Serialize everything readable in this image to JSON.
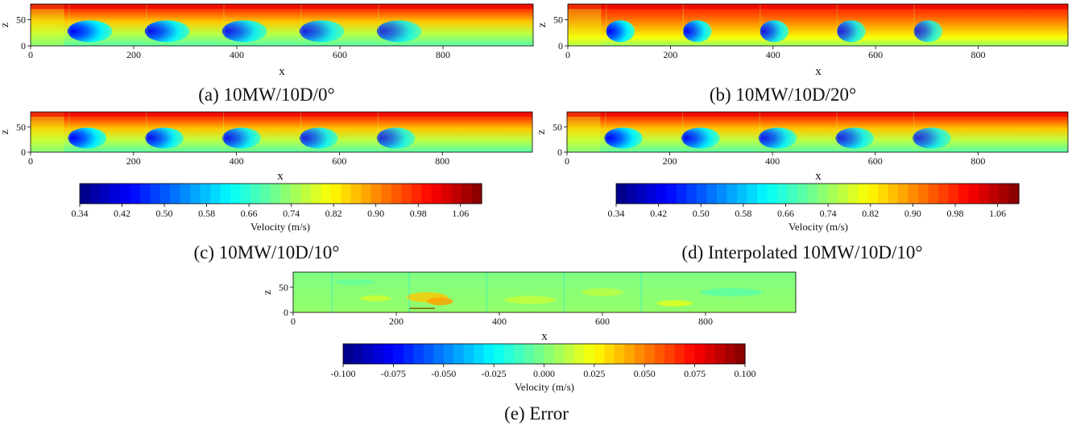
{
  "chart_data": [
    {
      "type": "heatmap",
      "id": "a",
      "caption": "(a) 10MW/10D/0°",
      "xlabel": "x",
      "ylabel": "z",
      "xlim": [
        0,
        975
      ],
      "ylim": [
        0,
        80
      ],
      "xticks": [
        0,
        200,
        400,
        600,
        800
      ],
      "yticks": [
        0,
        50
      ],
      "turbine_x": [
        80,
        230,
        380,
        530,
        680
      ],
      "turbine_hub_z": [
        25
      ],
      "yaw_deg": 0,
      "field": "velocity"
    },
    {
      "type": "heatmap",
      "id": "b",
      "caption": "(b) 10MW/10D/20°",
      "xlabel": "x",
      "ylabel": "z",
      "xlim": [
        0,
        975
      ],
      "ylim": [
        0,
        80
      ],
      "xticks": [
        0,
        200,
        400,
        600,
        800
      ],
      "yticks": [
        0,
        50
      ],
      "turbine_x": [
        80,
        230,
        380,
        530,
        680
      ],
      "yaw_deg": 20,
      "field": "velocity"
    },
    {
      "type": "heatmap",
      "id": "c",
      "caption": "(c) 10MW/10D/10°",
      "xlabel": "x",
      "ylabel": "z",
      "xlim": [
        0,
        975
      ],
      "ylim": [
        0,
        80
      ],
      "xticks": [
        0,
        200,
        400,
        600,
        800
      ],
      "yticks": [
        0,
        50
      ],
      "turbine_x": [
        80,
        230,
        380,
        530,
        680
      ],
      "yaw_deg": 10,
      "field": "velocity",
      "colorbar": {
        "label": "Velocity (m/s)",
        "range": [
          0.34,
          1.1
        ],
        "ticks": [
          "0.34",
          "0.42",
          "0.50",
          "0.58",
          "0.66",
          "0.74",
          "0.82",
          "0.90",
          "0.98",
          "1.06"
        ]
      }
    },
    {
      "type": "heatmap",
      "id": "d",
      "caption": "(d) Interpolated 10MW/10D/10°",
      "xlabel": "x",
      "ylabel": "z",
      "xlim": [
        0,
        975
      ],
      "ylim": [
        0,
        80
      ],
      "xticks": [
        0,
        200,
        400,
        600,
        800
      ],
      "yticks": [
        0,
        50
      ],
      "turbine_x": [
        80,
        230,
        380,
        530,
        680
      ],
      "yaw_deg": 10,
      "field": "velocity",
      "colorbar": {
        "label": "Velocity (m/s)",
        "range": [
          0.34,
          1.1
        ],
        "ticks": [
          "0.34",
          "0.42",
          "0.50",
          "0.58",
          "0.66",
          "0.74",
          "0.82",
          "0.90",
          "0.98",
          "1.06"
        ]
      }
    },
    {
      "type": "heatmap",
      "id": "e",
      "caption": "(e) Error",
      "xlabel": "x",
      "ylabel": "z",
      "xlim": [
        0,
        975
      ],
      "ylim": [
        0,
        80
      ],
      "xticks": [
        0,
        200,
        400,
        600,
        800
      ],
      "yticks": [
        0,
        50
      ],
      "turbine_x": [
        80,
        230,
        380,
        530,
        680
      ],
      "field": "error",
      "colorbar": {
        "label": "Velocity (m/s)",
        "range": [
          -0.1,
          0.1
        ],
        "ticks": [
          "-0.100",
          "-0.075",
          "-0.050",
          "-0.025",
          "0.000",
          "0.025",
          "0.050",
          "0.075",
          "0.100"
        ]
      }
    }
  ]
}
